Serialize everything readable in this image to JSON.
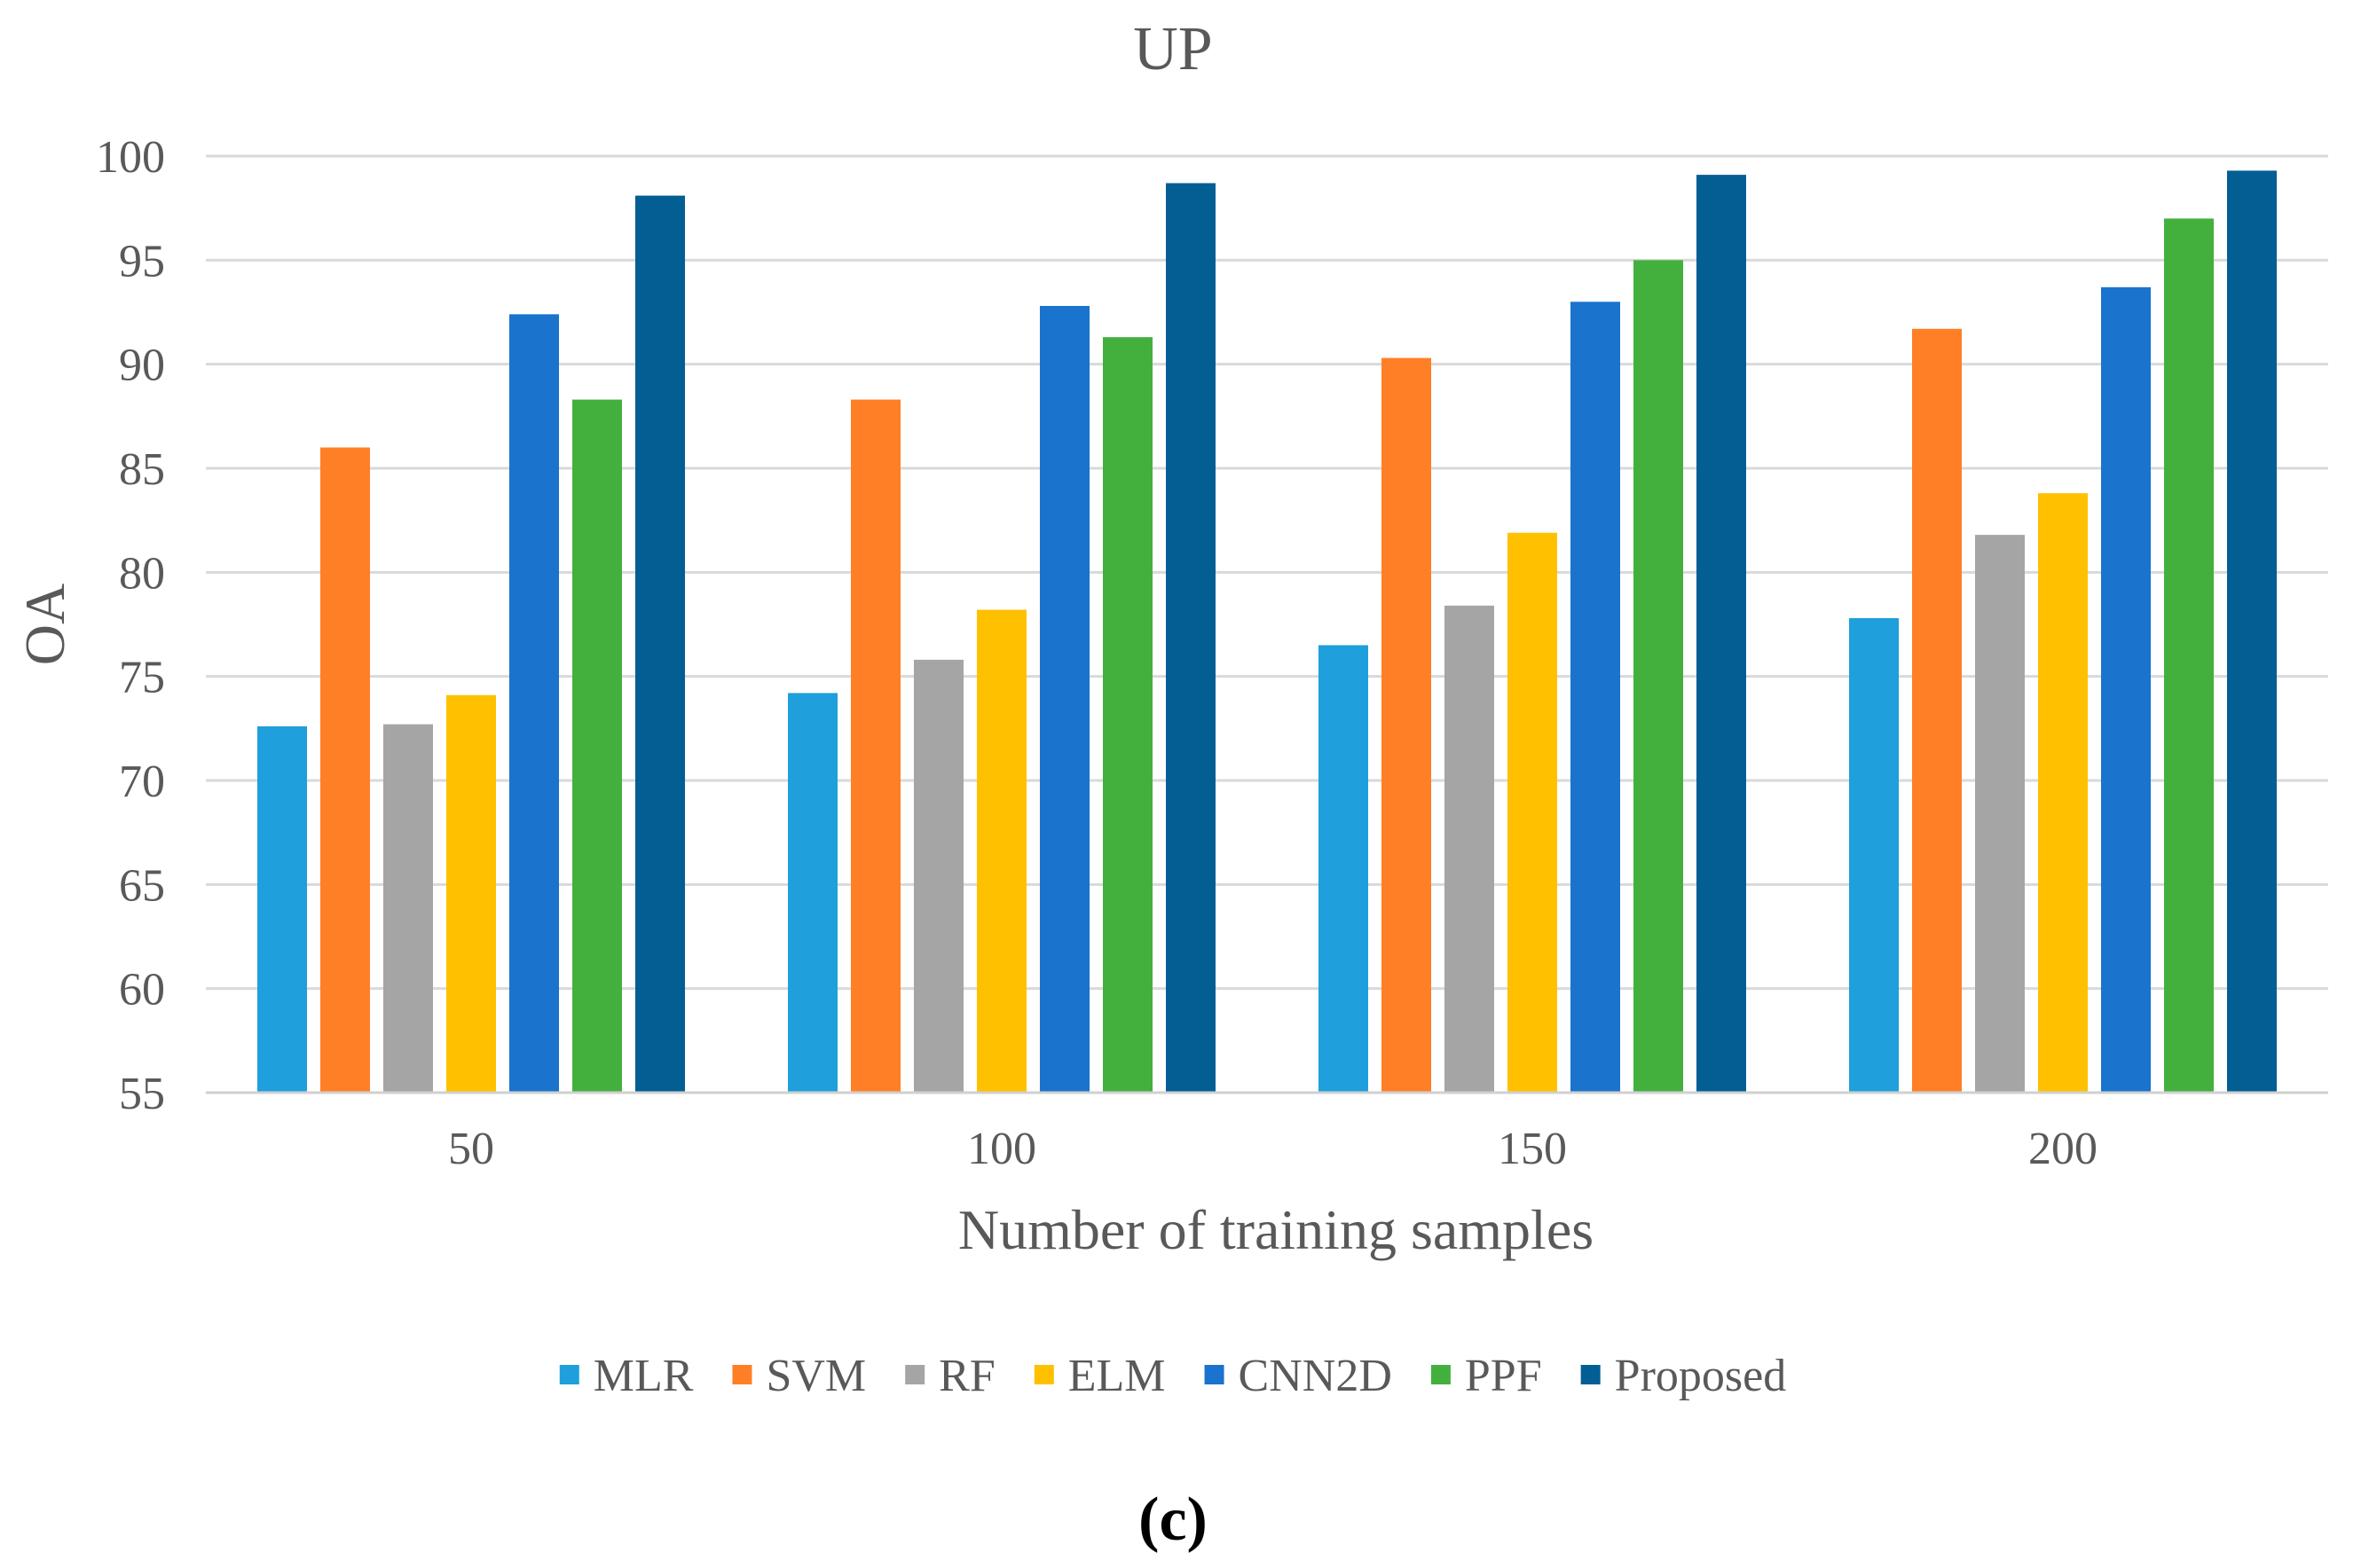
{
  "chart_data": {
    "type": "bar",
    "title": "UP",
    "xlabel": "Number of training samples",
    "ylabel": "OA",
    "ylim": [
      55,
      100
    ],
    "yticks": [
      55,
      60,
      65,
      70,
      75,
      80,
      85,
      90,
      95,
      100
    ],
    "categories": [
      "50",
      "100",
      "150",
      "200"
    ],
    "grid": true,
    "legend_position": "bottom",
    "series": [
      {
        "name": "MLR",
        "color": "#1F9FDB",
        "values": [
          72.6,
          74.2,
          76.5,
          77.8
        ]
      },
      {
        "name": "SVM",
        "color": "#FF7F27",
        "values": [
          86.0,
          88.3,
          90.3,
          91.7
        ]
      },
      {
        "name": "RF",
        "color": "#A5A5A5",
        "values": [
          72.7,
          75.8,
          78.4,
          81.8
        ]
      },
      {
        "name": "ELM",
        "color": "#FFC000",
        "values": [
          74.1,
          78.2,
          81.9,
          83.8
        ]
      },
      {
        "name": "CNN2D",
        "color": "#1A73CC",
        "values": [
          92.4,
          92.8,
          93.0,
          93.7
        ]
      },
      {
        "name": "PPF",
        "color": "#43B03E",
        "values": [
          88.3,
          91.3,
          95.0,
          97.0
        ]
      },
      {
        "name": "Proposed",
        "color": "#035E94",
        "values": [
          98.1,
          98.7,
          99.1,
          99.3
        ]
      }
    ]
  },
  "caption": "(c)"
}
